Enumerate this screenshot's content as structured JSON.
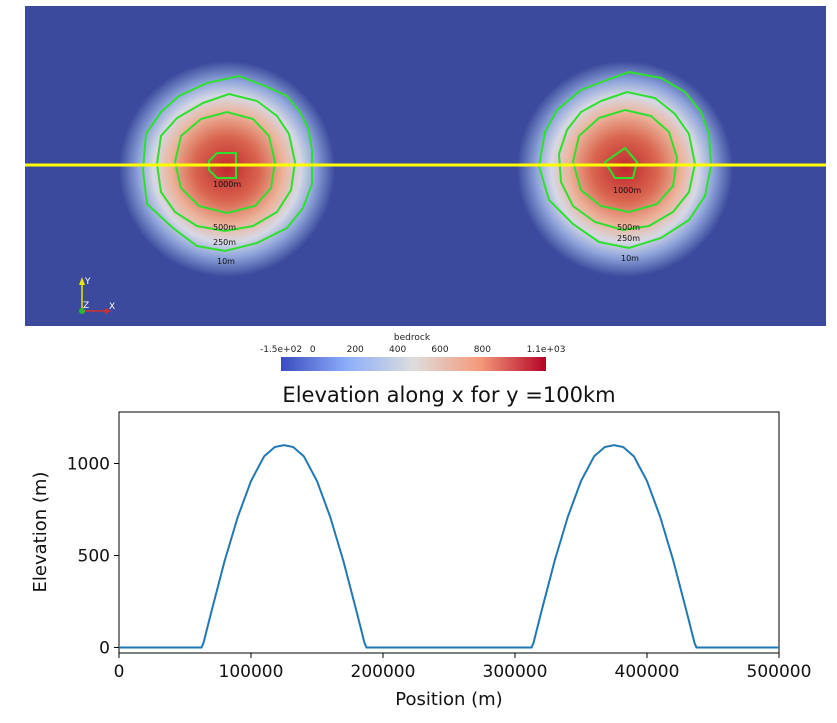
{
  "map": {
    "background_color": "#3b4a9c",
    "profile_line_color": "#ffff00",
    "contour_color": "#2ee02e",
    "contour_levels": [
      10,
      250,
      500,
      1000
    ],
    "contour_labels": {
      "left": [
        "1000m",
        "500m",
        "250m",
        "10m"
      ],
      "right": [
        "1000m",
        "500m",
        "250m",
        "10m"
      ]
    },
    "orientation_axes": {
      "x": "X",
      "y": "Y",
      "z": "Z"
    }
  },
  "colorbar": {
    "title": "bedrock",
    "min": -150,
    "max": 1100,
    "tick_labels": [
      "-1.5e+02",
      "0",
      "200",
      "400",
      "600",
      "800",
      "1.1e+03"
    ],
    "tick_values": [
      -150,
      0,
      200,
      400,
      600,
      800,
      1100
    ],
    "colormap": "cool-to-warm",
    "colors": [
      "#3b4cc0",
      "#dddddd",
      "#b40426"
    ]
  },
  "chart_data": {
    "type": "line",
    "title": "Elevation along x for y =100km",
    "xlabel": "Position (m)",
    "ylabel": "Elevation (m)",
    "xlim": [
      0,
      500000
    ],
    "ylim": [
      -30,
      1280
    ],
    "x_ticks": [
      0,
      100000,
      200000,
      300000,
      400000,
      500000
    ],
    "x_tick_labels": [
      "0",
      "100000",
      "200000",
      "300000",
      "400000",
      "500000"
    ],
    "y_ticks": [
      0,
      500,
      1000
    ],
    "y_tick_labels": [
      "0",
      "500",
      "1000"
    ],
    "line_color": "#1f77b4",
    "grid": false,
    "series": [
      {
        "x": [
          0,
          62500,
          64000,
          70000,
          80000,
          90000,
          100000,
          110000,
          118000,
          125000,
          132000,
          140000,
          150000,
          160000,
          170000,
          180000,
          186000,
          187500,
          250000,
          312500,
          314000,
          320000,
          330000,
          340000,
          350000,
          360000,
          368000,
          375000,
          382000,
          390000,
          400000,
          410000,
          420000,
          430000,
          436000,
          437500,
          500000
        ],
        "y": [
          0,
          0,
          25,
          195,
          470,
          710,
          905,
          1040,
          1090,
          1100,
          1090,
          1040,
          905,
          710,
          470,
          195,
          25,
          0,
          0,
          0,
          25,
          195,
          470,
          710,
          905,
          1040,
          1090,
          1100,
          1090,
          1040,
          905,
          710,
          470,
          195,
          25,
          0,
          0
        ]
      }
    ]
  }
}
